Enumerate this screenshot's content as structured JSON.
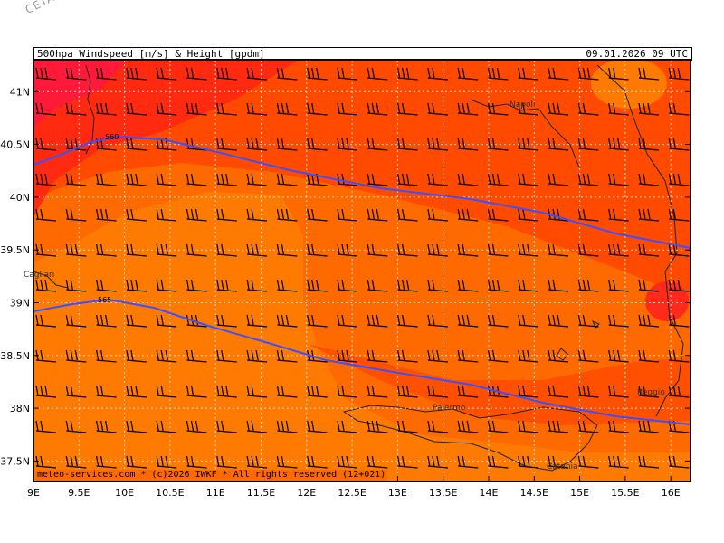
{
  "watermark": "CETA - Inst.",
  "header": {
    "title": "500hpa Windspeed [m/s] & Height [gpdm]",
    "datetime": "09.01.2026 09 UTC"
  },
  "footer": "meteo-services.com * (c)2026 IWKF * All rights reserved (12+021)",
  "axes": {
    "lon_labels": [
      "9E",
      "9.5E",
      "10E",
      "10.5E",
      "11E",
      "11.5E",
      "12E",
      "12.5E",
      "13E",
      "13.5E",
      "14E",
      "14.5E",
      "15E",
      "15.5E",
      "16E"
    ],
    "lat_labels": [
      "41N",
      "40.5N",
      "40N",
      "39.5N",
      "39N",
      "38.5N",
      "38N",
      "37.5N"
    ]
  },
  "contours": [
    {
      "label": "560",
      "color": "#3c50ff"
    },
    {
      "label": "565",
      "color": "#3c50ff"
    }
  ],
  "places": [
    "Napoli",
    "Cagliari",
    "Palermo",
    "Reggio",
    "Catania"
  ],
  "colors": {
    "background": "#ff6a00",
    "strong": "#ff4000",
    "stronger": "#ff2a1a",
    "core": "#ff1a3a",
    "weak": "#ff7a00",
    "grid": "#d9d9d9"
  }
}
